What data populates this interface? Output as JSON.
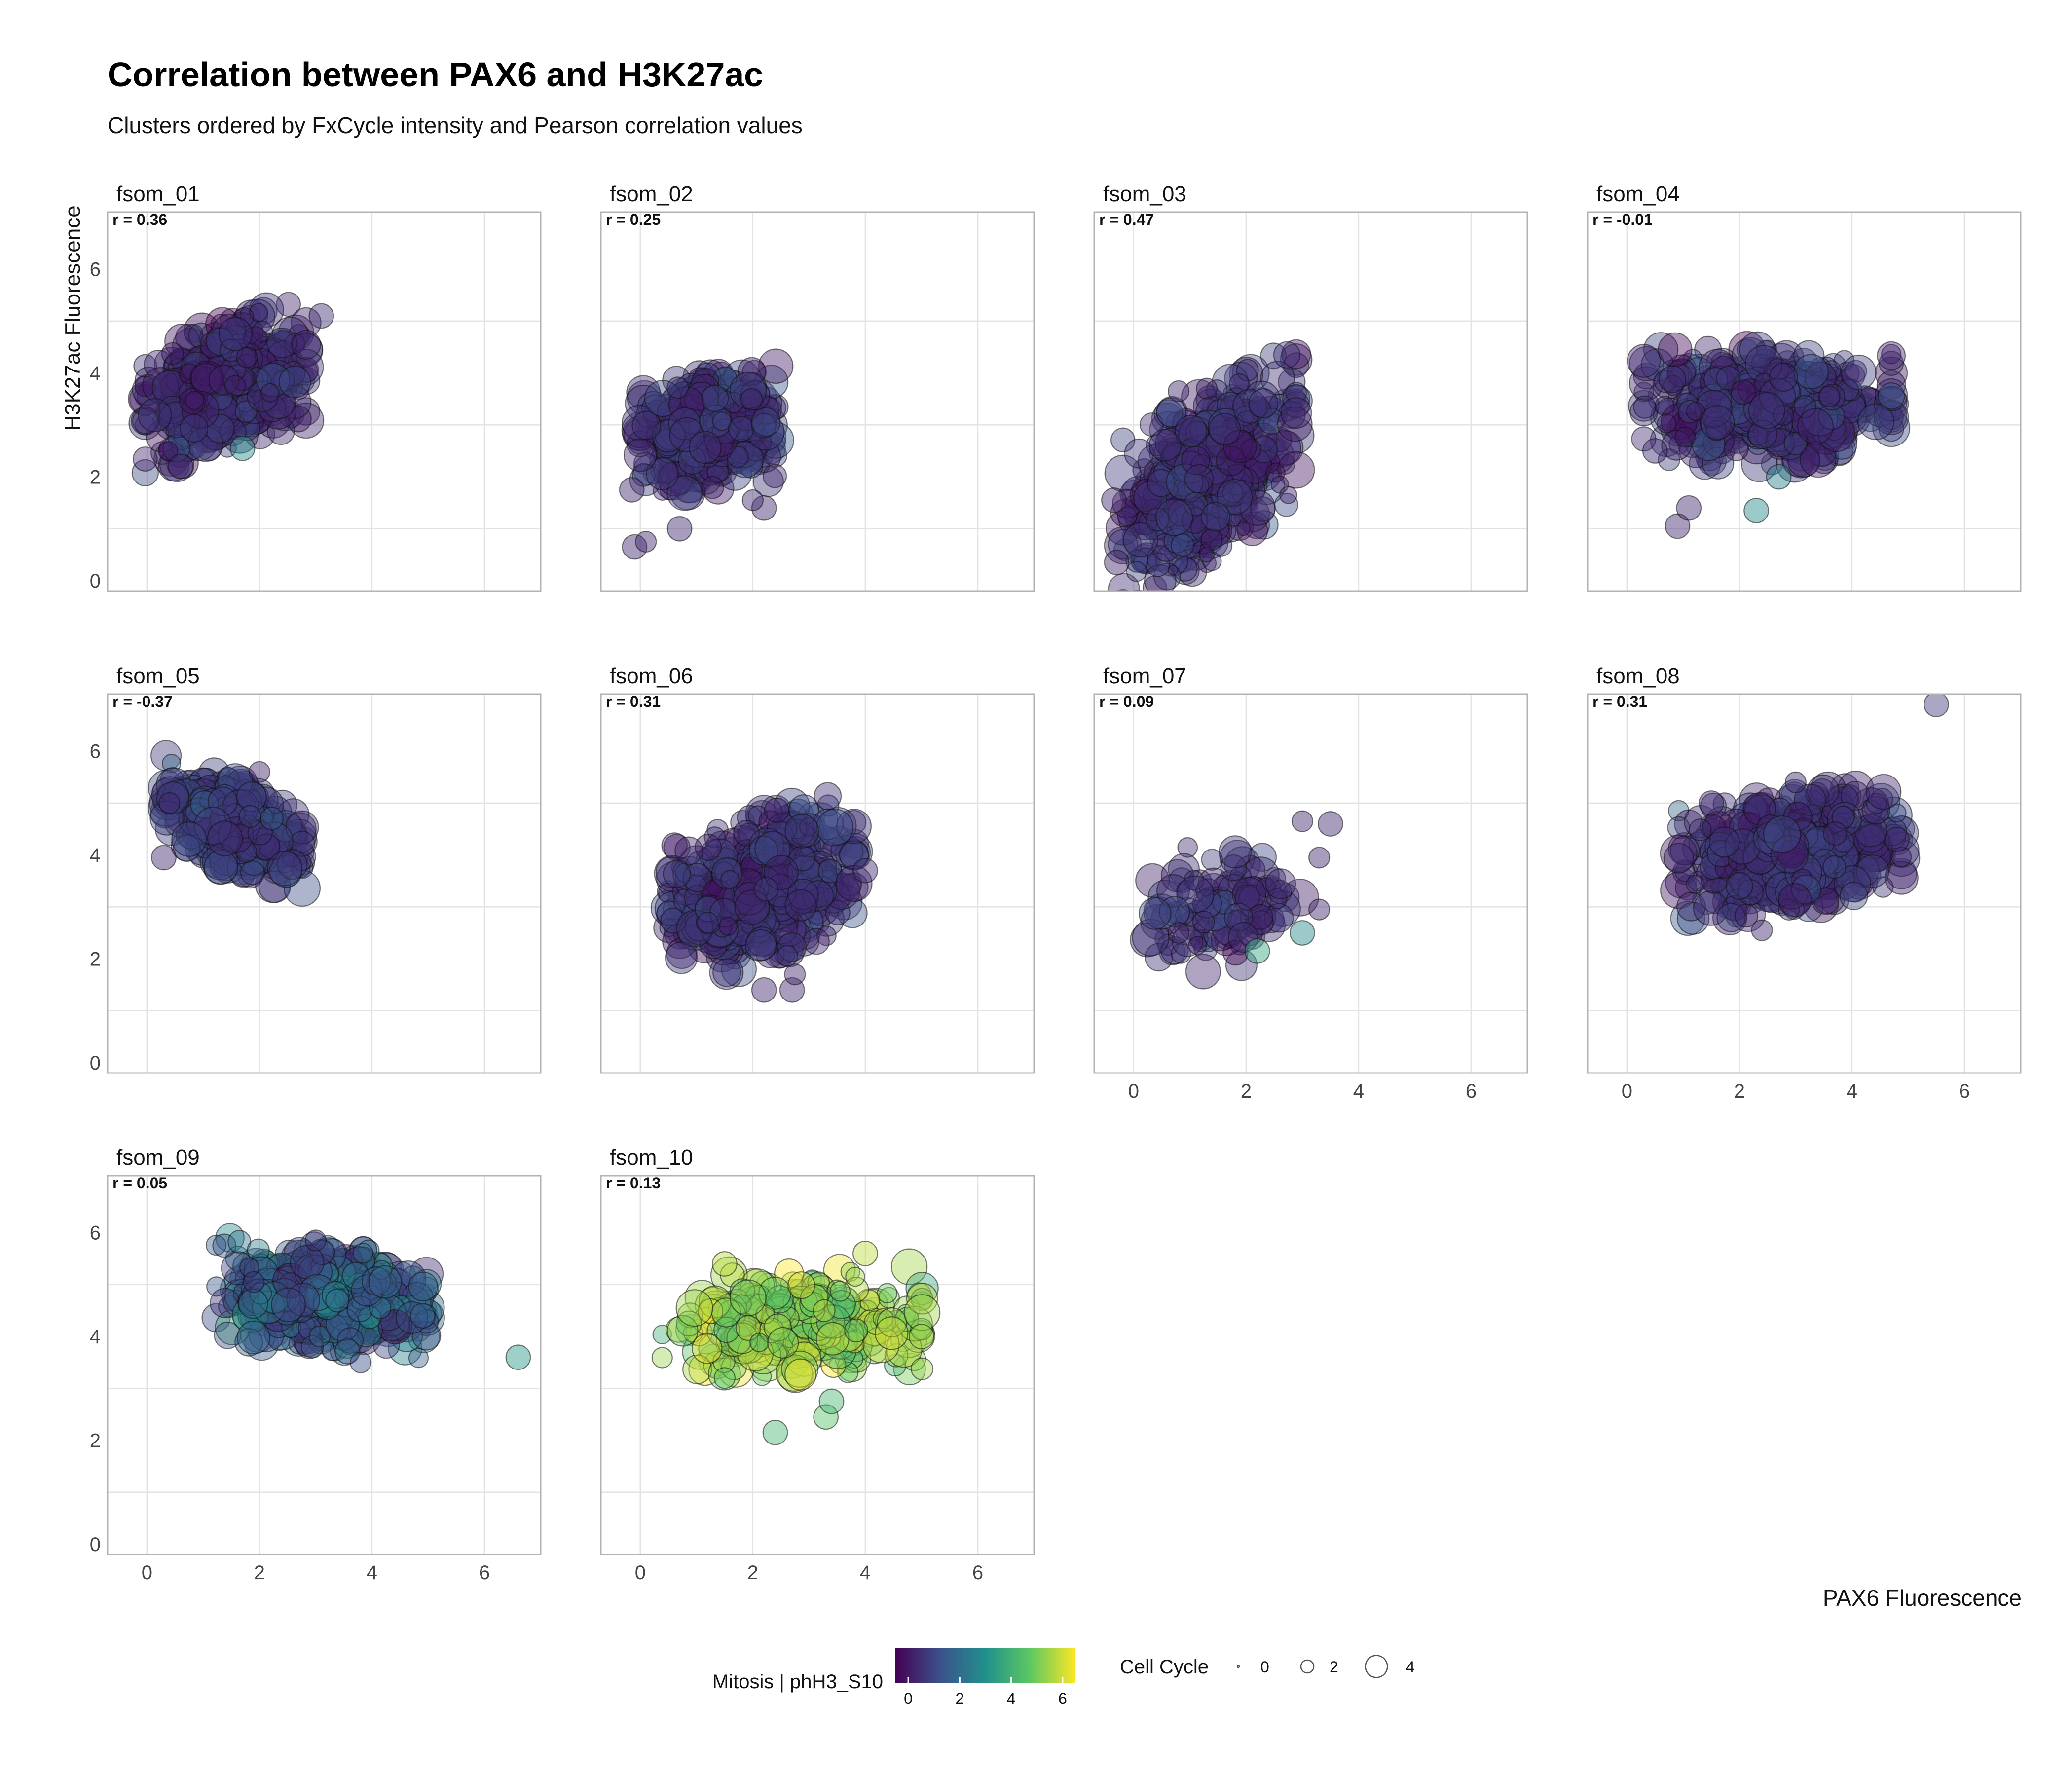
{
  "title": "Correlation between PAX6 and H3K27ac",
  "subtitle": "Clusters ordered by FxCycle intensity and Pearson correlation values",
  "ylabel": "H3K27ac Fluorescence",
  "xlabel": "PAX6 Fluorescence",
  "legend": {
    "color_title": "Mitosis | phH3_S10",
    "color_ticks": [
      "0",
      "2",
      "4",
      "6"
    ],
    "size_title": "Cell Cycle",
    "size_ticks": [
      "0",
      "2",
      "4"
    ]
  },
  "chart_data": {
    "type": "scatter",
    "facet_type": "faceted scatter (bubble)",
    "xlabel": "PAX6 Fluorescence",
    "ylabel": "H3K27ac Fluorescence",
    "xlim": [
      -0.7,
      7.0
    ],
    "ylim": [
      -0.2,
      7.1
    ],
    "x_ticks": [
      0,
      2,
      4,
      6
    ],
    "y_ticks": [
      0,
      2,
      4,
      6
    ],
    "grid": true,
    "colorscale": "viridis",
    "color_range": [
      -0.5,
      6.5
    ],
    "size_range": [
      0,
      5
    ],
    "legend_position": "bottom",
    "panels": [
      {
        "name": "fsom_01",
        "r_label": "r = 0.36",
        "cluster": {
          "cx": 1.4,
          "cy": 3.75,
          "sx": 0.65,
          "sy": 0.55,
          "tilt": 0.35,
          "n": 520,
          "color": 0.4,
          "color_sd": 0.35
        },
        "outliers": [
          {
            "x": 3.1,
            "y": 5.1,
            "color": 0.5,
            "size": 2.5
          },
          {
            "x": 1.7,
            "y": 2.55,
            "color": 3.0,
            "size": 2.5
          },
          {
            "x": 0.6,
            "y": 2.2,
            "color": 0.4,
            "size": 2.5
          }
        ]
      },
      {
        "name": "fsom_02",
        "r_label": "r = 0.25",
        "cluster": {
          "cx": 1.2,
          "cy": 2.85,
          "sx": 0.55,
          "sy": 0.5,
          "tilt": 0.15,
          "n": 460,
          "color": 0.6,
          "color_sd": 0.35
        },
        "outliers": [
          {
            "x": -0.1,
            "y": 0.65,
            "color": 0.3,
            "size": 2.5
          },
          {
            "x": 0.1,
            "y": 0.75,
            "color": 0.3,
            "size": 2.0
          },
          {
            "x": -0.15,
            "y": 1.75,
            "color": 0.3,
            "size": 2.5
          },
          {
            "x": 0.7,
            "y": 1.0,
            "color": 0.3,
            "size": 2.5
          },
          {
            "x": 2.2,
            "y": 1.4,
            "color": 0.3,
            "size": 2.5
          },
          {
            "x": 2.0,
            "y": 1.55,
            "color": 0.4,
            "size": 2.0
          }
        ]
      },
      {
        "name": "fsom_03",
        "r_label": "r = 0.47",
        "cluster": {
          "cx": 1.35,
          "cy": 2.0,
          "sx": 0.7,
          "sy": 0.75,
          "tilt": 0.6,
          "n": 460,
          "color": 0.5,
          "color_sd": 0.35
        },
        "outliers": [
          {
            "x": -0.3,
            "y": 0.35,
            "color": 0.3,
            "size": 2.5
          },
          {
            "x": -0.35,
            "y": 1.55,
            "color": 0.3,
            "size": 2.5
          },
          {
            "x": 2.6,
            "y": 1.85,
            "color": 0.3,
            "size": 1.5
          },
          {
            "x": 2.75,
            "y": 1.65,
            "color": 0.3,
            "size": 1.5
          },
          {
            "x": 1.95,
            "y": 1.0,
            "color": 0.3,
            "size": 1.0
          },
          {
            "x": 1.3,
            "y": 0.5,
            "color": 0.3,
            "size": 1.2
          },
          {
            "x": 0.7,
            "y": 0.2,
            "color": 0.3,
            "size": 0.5
          },
          {
            "x": 1.3,
            "y": 3.7,
            "color": 0.3,
            "size": 2.0
          },
          {
            "x": 0.8,
            "y": 3.65,
            "color": 0.3,
            "size": 2.0
          }
        ]
      },
      {
        "name": "fsom_04",
        "r_label": "r = -0.01",
        "cluster": {
          "cx": 2.5,
          "cy": 3.35,
          "sx": 1.0,
          "sy": 0.5,
          "tilt": 0.0,
          "n": 520,
          "color": 0.6,
          "color_sd": 0.4
        },
        "outliers": [
          {
            "x": 0.9,
            "y": 1.05,
            "color": 0.3,
            "size": 2.5
          },
          {
            "x": 1.1,
            "y": 1.4,
            "color": 0.3,
            "size": 2.5
          },
          {
            "x": 2.3,
            "y": 1.35,
            "color": 2.8,
            "size": 2.5
          },
          {
            "x": 2.7,
            "y": 2.0,
            "color": 2.6,
            "size": 2.5
          },
          {
            "x": 3.6,
            "y": 3.55,
            "color": 0.3,
            "size": 2.0
          },
          {
            "x": 0.5,
            "y": 2.5,
            "color": 0.4,
            "size": 2.5
          }
        ]
      },
      {
        "name": "fsom_05",
        "r_label": "r = -0.37",
        "cluster": {
          "cx": 1.55,
          "cy": 4.55,
          "sx": 0.55,
          "sy": 0.4,
          "tilt": -0.4,
          "n": 460,
          "color": 0.8,
          "color_sd": 0.4
        },
        "outliers": [
          {
            "x": 0.3,
            "y": 3.95,
            "color": 0.3,
            "size": 2.5
          },
          {
            "x": 0.4,
            "y": 5.0,
            "color": 0.3,
            "size": 2.0
          },
          {
            "x": 2.0,
            "y": 5.6,
            "color": 0.3,
            "size": 2.0
          }
        ]
      },
      {
        "name": "fsom_06",
        "r_label": "r = 0.31",
        "cluster": {
          "cx": 2.15,
          "cy": 3.35,
          "sx": 0.75,
          "sy": 0.65,
          "tilt": 0.3,
          "n": 560,
          "color": 0.6,
          "color_sd": 0.35
        },
        "outliers": [
          {
            "x": 2.2,
            "y": 1.4,
            "color": 0.3,
            "size": 2.5
          },
          {
            "x": 2.7,
            "y": 1.4,
            "color": 0.3,
            "size": 2.5
          },
          {
            "x": 2.75,
            "y": 1.7,
            "color": 0.3,
            "size": 2.0
          },
          {
            "x": 4.0,
            "y": 3.7,
            "color": 0.4,
            "size": 2.5
          },
          {
            "x": 1.2,
            "y": 2.7,
            "color": 0.4,
            "size": 2.0
          }
        ]
      },
      {
        "name": "fsom_07",
        "r_label": "r = 0.09",
        "cluster": {
          "cx": 1.6,
          "cy": 3.0,
          "sx": 0.65,
          "sy": 0.55,
          "tilt": 0.1,
          "n": 110,
          "color": 0.5,
          "color_sd": 0.4
        },
        "outliers": [
          {
            "x": 3.5,
            "y": 4.6,
            "color": 0.3,
            "size": 2.5
          },
          {
            "x": 3.0,
            "y": 4.65,
            "color": 0.3,
            "size": 2.0
          },
          {
            "x": 3.0,
            "y": 2.5,
            "color": 2.8,
            "size": 2.5
          },
          {
            "x": 2.2,
            "y": 2.15,
            "color": 3.6,
            "size": 2.5
          },
          {
            "x": 3.3,
            "y": 3.95,
            "color": 0.3,
            "size": 2.0
          },
          {
            "x": 3.3,
            "y": 2.95,
            "color": 0.3,
            "size": 2.0
          },
          {
            "x": 0.8,
            "y": 2.5,
            "color": 0.3,
            "size": 2.0
          }
        ]
      },
      {
        "name": "fsom_08",
        "r_label": "r = 0.31",
        "cluster": {
          "cx": 2.9,
          "cy": 4.05,
          "sx": 0.9,
          "sy": 0.5,
          "tilt": 0.15,
          "n": 560,
          "color": 0.6,
          "color_sd": 0.4
        },
        "outliers": [
          {
            "x": 5.5,
            "y": 6.9,
            "color": 0.8,
            "size": 2.5
          },
          {
            "x": 2.4,
            "y": 2.55,
            "color": 0.3,
            "size": 2.0
          },
          {
            "x": 4.8,
            "y": 4.3,
            "color": 0.3,
            "size": 2.5
          },
          {
            "x": 1.5,
            "y": 5.0,
            "color": 0.3,
            "size": 2.5
          },
          {
            "x": 3.0,
            "y": 5.4,
            "color": 0.3,
            "size": 2.0
          }
        ]
      },
      {
        "name": "fsom_09",
        "r_label": "r = 0.05",
        "cluster": {
          "cx": 3.1,
          "cy": 4.75,
          "sx": 0.85,
          "sy": 0.45,
          "tilt": -0.1,
          "n": 560,
          "color": 1.6,
          "color_sd": 0.8
        },
        "outliers": [
          {
            "x": 6.6,
            "y": 3.6,
            "color": 3.2,
            "size": 2.5
          },
          {
            "x": 4.9,
            "y": 4.4,
            "color": 1.6,
            "size": 2.5
          },
          {
            "x": 1.9,
            "y": 5.05,
            "color": 0.6,
            "size": 2.0
          },
          {
            "x": 3.0,
            "y": 5.85,
            "color": 0.6,
            "size": 2.0
          },
          {
            "x": 3.8,
            "y": 3.5,
            "color": 1.2,
            "size": 2.0
          }
        ]
      },
      {
        "name": "fsom_10",
        "r_label": "r = 0.13",
        "cluster": {
          "cx": 2.7,
          "cy": 4.25,
          "sx": 1.05,
          "sy": 0.45,
          "tilt": 0.05,
          "n": 330,
          "color": 5.3,
          "color_sd": 0.7
        },
        "outliers": [
          {
            "x": 2.4,
            "y": 2.15,
            "color": 4.2,
            "size": 2.5
          },
          {
            "x": 3.3,
            "y": 2.45,
            "color": 4.5,
            "size": 2.5
          },
          {
            "x": 3.4,
            "y": 2.75,
            "color": 4.2,
            "size": 2.5
          },
          {
            "x": 5.0,
            "y": 4.0,
            "color": 5.6,
            "size": 2.5
          },
          {
            "x": 1.5,
            "y": 5.4,
            "color": 5.8,
            "size": 2.5
          },
          {
            "x": 4.0,
            "y": 5.6,
            "color": 5.8,
            "size": 2.5
          },
          {
            "x": 1.5,
            "y": 3.2,
            "color": 4.8,
            "size": 2.0
          }
        ]
      }
    ]
  }
}
